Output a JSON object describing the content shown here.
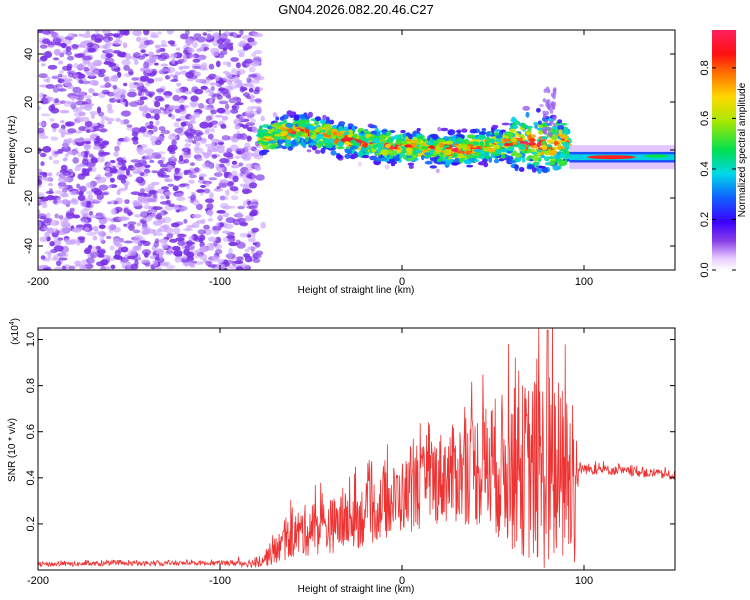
{
  "figure_title": "GN04.2026.082.20.46.C27",
  "chart_data": [
    {
      "type": "heatmap",
      "name": "spectrogram",
      "title": "GN04.2026.082.20.46.C27",
      "xlabel": "Height of straight line (km)",
      "ylabel": "Frequency (Hz)",
      "xlim": [
        -200,
        150
      ],
      "ylim": [
        -50,
        50
      ],
      "xticks": [
        -200,
        -100,
        0,
        100
      ],
      "yticks": [
        -40,
        -20,
        0,
        20,
        40
      ],
      "colorbar": {
        "label": "Normalized spectral amplitude",
        "range": [
          0,
          0.95
        ],
        "ticks": [
          "0.0",
          "0.2",
          "0.4",
          "0.6",
          "0.8"
        ]
      },
      "regions": [
        {
          "x_range": [
            -200,
            -78
          ],
          "freq_range": [
            -50,
            50
          ],
          "description": "broadband noise",
          "amplitude": 0.05
        },
        {
          "x_range": [
            -78,
            92
          ],
          "freq_center": [
            5,
            8,
            5,
            2,
            1,
            0,
            2,
            3,
            2
          ],
          "x_at": [
            -78,
            -55,
            -35,
            -10,
            10,
            30,
            50,
            70,
            92
          ],
          "band_halfwidth": 10,
          "peak_amplitude": 0.9
        },
        {
          "x_range": [
            92,
            150
          ],
          "freq_center": -3,
          "band_halfwidth": 3,
          "peak_amplitude": 0.9
        }
      ]
    },
    {
      "type": "line",
      "name": "snr",
      "xlabel": "Height of straight line (km)",
      "ylabel": "SNR (10 * v/v)",
      "scale_label": "(x10",
      "scale_exp": "4",
      "xlim": [
        -200,
        150
      ],
      "ylim": [
        0,
        1.05
      ],
      "xticks": [
        -200,
        -100,
        0,
        100
      ],
      "yticks": [
        "0.2",
        "0.4",
        "0.6",
        "0.8",
        "1.0"
      ],
      "line_color": "#ee3333",
      "envelope": {
        "x": [
          -200,
          -100,
          -80,
          -70,
          -60,
          -50,
          -40,
          -30,
          -20,
          -10,
          0,
          10,
          20,
          30,
          40,
          50,
          60,
          70,
          80,
          90,
          95,
          97,
          100,
          120,
          150
        ],
        "mean": [
          0.025,
          0.03,
          0.03,
          0.08,
          0.15,
          0.18,
          0.19,
          0.21,
          0.24,
          0.28,
          0.32,
          0.35,
          0.4,
          0.42,
          0.44,
          0.45,
          0.44,
          0.43,
          0.42,
          0.4,
          0.38,
          0.44,
          0.44,
          0.43,
          0.41
        ],
        "spread": [
          0.01,
          0.01,
          0.02,
          0.06,
          0.1,
          0.12,
          0.12,
          0.13,
          0.14,
          0.15,
          0.16,
          0.18,
          0.2,
          0.22,
          0.25,
          0.3,
          0.35,
          0.4,
          0.45,
          0.4,
          0.38,
          0.03,
          0.025,
          0.02,
          0.02
        ],
        "peak": {
          "x": 80,
          "y": 1.04
        }
      }
    }
  ],
  "colors": {
    "line": "#ee3333",
    "noise": "#8a40e8",
    "background": "#ffffff"
  }
}
